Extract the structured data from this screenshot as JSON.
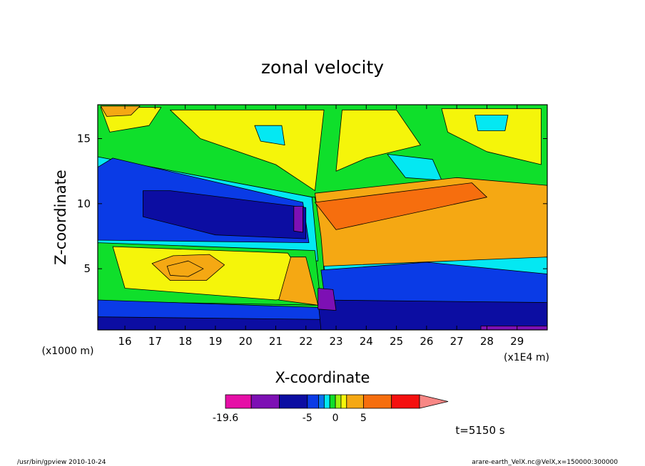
{
  "chart_data": {
    "type": "heatmap",
    "title": "zonal velocity",
    "xlabel": "X-coordinate",
    "ylabel": "Z-coordinate",
    "x_unit_label": "(x1E4 m)",
    "y_unit_label": "(x1000 m)",
    "xlim": [
      15.1,
      30.0
    ],
    "ylim": [
      0.3,
      17.6
    ],
    "x_ticks": [
      16,
      17,
      18,
      19,
      20,
      21,
      22,
      23,
      24,
      25,
      26,
      27,
      28,
      29
    ],
    "y_ticks": [
      5,
      10,
      15
    ],
    "colorbar": {
      "levels": [
        -19.6,
        -15,
        -10,
        -5,
        -3,
        -2,
        -1,
        0,
        1,
        2,
        5,
        10,
        15
      ],
      "tick_labels": [
        "-19.6",
        "-5",
        "0",
        "5"
      ],
      "colors": [
        "#e60fa7",
        "#7d10b4",
        "#0c0da2",
        "#0a3be6",
        "#0a74f0",
        "#04e8f2",
        "#0fdf2b",
        "#9ef20e",
        "#f5f50a",
        "#f5a813",
        "#f66e0e",
        "#f5100f",
        "#f88785"
      ]
    },
    "regions": [
      {
        "name": "upper-layer",
        "value": 0,
        "color": "#0fdf2b",
        "points": [
          [
            15.1,
            17.6
          ],
          [
            30,
            17.6
          ],
          [
            30,
            10.5
          ],
          [
            22.2,
            10.5
          ],
          [
            15.1,
            13.6
          ]
        ]
      },
      {
        "name": "upper-yellow-center",
        "value": 2,
        "color": "#f5f50a",
        "points": [
          [
            17.5,
            17.2
          ],
          [
            22.6,
            17.2
          ],
          [
            22.3,
            11
          ],
          [
            21,
            13
          ],
          [
            18.5,
            15
          ]
        ]
      },
      {
        "name": "upper-yellow-right",
        "value": 2,
        "color": "#f5f50a",
        "points": [
          [
            23.2,
            17.2
          ],
          [
            25,
            17.2
          ],
          [
            25.8,
            14.5
          ],
          [
            24,
            13.5
          ],
          [
            23,
            12.5
          ]
        ]
      },
      {
        "name": "upper-yellow-far-right",
        "value": 2,
        "color": "#f5f50a",
        "points": [
          [
            26.5,
            17.3
          ],
          [
            29.8,
            17.3
          ],
          [
            29.8,
            13
          ],
          [
            28,
            14
          ],
          [
            26.7,
            15.5
          ]
        ]
      },
      {
        "name": "upper-yellow-left",
        "value": 2,
        "color": "#f5f50a",
        "points": [
          [
            15.2,
            17.4
          ],
          [
            17.2,
            17.4
          ],
          [
            16.8,
            16
          ],
          [
            15.5,
            15.5
          ]
        ]
      },
      {
        "name": "top-left-orange",
        "value": 5,
        "color": "#f5a813",
        "points": [
          [
            15.2,
            17.5
          ],
          [
            16.5,
            17.5
          ],
          [
            16.2,
            16.8
          ],
          [
            15.4,
            16.7
          ]
        ]
      },
      {
        "name": "upper-cyan-patch",
        "value": -3,
        "color": "#04e8f2",
        "points": [
          [
            24.7,
            13.8
          ],
          [
            26.2,
            13.4
          ],
          [
            26.5,
            11.8
          ],
          [
            25.3,
            12
          ]
        ]
      },
      {
        "name": "upper-cyan-patch-2",
        "value": -3,
        "color": "#04e8f2",
        "points": [
          [
            27.6,
            16.8
          ],
          [
            28.7,
            16.8
          ],
          [
            28.6,
            15.6
          ],
          [
            27.7,
            15.6
          ]
        ]
      },
      {
        "name": "upper-cyan-patch-3",
        "value": -3,
        "color": "#04e8f2",
        "points": [
          [
            20.3,
            16
          ],
          [
            21.2,
            16
          ],
          [
            21.3,
            14.5
          ],
          [
            20.5,
            14.8
          ]
        ]
      },
      {
        "name": "cyan-band-left",
        "value": -3,
        "color": "#04e8f2",
        "points": [
          [
            15.1,
            13.6
          ],
          [
            22.2,
            10.5
          ],
          [
            22.4,
            5.6
          ],
          [
            15.1,
            6.2
          ]
        ]
      },
      {
        "name": "light-blue-band",
        "value": -5,
        "color": "#0a3be6",
        "points": [
          [
            15.1,
            12.8
          ],
          [
            15.6,
            13.5
          ],
          [
            21.9,
            10.1
          ],
          [
            22.1,
            7
          ],
          [
            15.1,
            7.2
          ]
        ]
      },
      {
        "name": "dark-blue-core",
        "value": -10,
        "color": "#0c0da2",
        "points": [
          [
            16.6,
            11
          ],
          [
            17.5,
            11
          ],
          [
            22,
            9.7
          ],
          [
            22,
            7.3
          ],
          [
            19,
            7.6
          ],
          [
            16.6,
            9
          ]
        ]
      },
      {
        "name": "purple-core-upper",
        "value": -15,
        "color": "#7d10b4",
        "points": [
          [
            21.6,
            9.8
          ],
          [
            21.9,
            9.8
          ],
          [
            21.9,
            7.8
          ],
          [
            21.6,
            7.9
          ]
        ]
      },
      {
        "name": "green-left-middle",
        "value": 0,
        "color": "#0fdf2b",
        "points": [
          [
            15.1,
            7
          ],
          [
            22.3,
            6.4
          ],
          [
            22.5,
            2.2
          ],
          [
            15.1,
            2.5
          ]
        ]
      },
      {
        "name": "yellow-left-middle",
        "value": 2,
        "color": "#f5f50a",
        "points": [
          [
            15.6,
            6.7
          ],
          [
            21.4,
            6.2
          ],
          [
            22.3,
            3
          ],
          [
            21,
            2.6
          ],
          [
            16,
            3.5
          ]
        ]
      },
      {
        "name": "orange-lens",
        "value": 5,
        "color": "#f5a813",
        "points": [
          [
            16.9,
            5.4
          ],
          [
            17.6,
            6
          ],
          [
            18.8,
            6.1
          ],
          [
            19.3,
            5.3
          ],
          [
            18.7,
            4.1
          ],
          [
            17.5,
            4.1
          ]
        ]
      },
      {
        "name": "orange-lens-core",
        "value": 10,
        "color": "#f5a813",
        "points": [
          [
            17.4,
            5.2
          ],
          [
            18.1,
            5.6
          ],
          [
            18.6,
            5
          ],
          [
            18.1,
            4.4
          ],
          [
            17.5,
            4.5
          ]
        ]
      },
      {
        "name": "orange-slanted",
        "value": 5,
        "color": "#f5a813",
        "points": [
          [
            21.5,
            5.9
          ],
          [
            22,
            5.9
          ],
          [
            22.4,
            2.2
          ],
          [
            21.1,
            2.6
          ]
        ]
      },
      {
        "name": "lower-left-blue",
        "value": -5,
        "color": "#0a3be6",
        "points": [
          [
            15.1,
            2.6
          ],
          [
            22.7,
            2
          ],
          [
            22.8,
            0.3
          ],
          [
            15.1,
            0.3
          ]
        ]
      },
      {
        "name": "lower-left-darkblue",
        "value": -10,
        "color": "#0c0da2",
        "points": [
          [
            15.1,
            1.3
          ],
          [
            22.7,
            1.1
          ],
          [
            22.8,
            0.3
          ],
          [
            15.1,
            0.3
          ]
        ]
      },
      {
        "name": "right-orange-layer",
        "value": 10,
        "color": "#f66e0e",
        "points": [
          [
            22.3,
            10.5
          ],
          [
            30,
            10.9
          ],
          [
            30,
            6
          ],
          [
            22.8,
            5
          ]
        ]
      },
      {
        "name": "right-orange-light",
        "value": 5,
        "color": "#f5a813",
        "points": [
          [
            22.3,
            10.8
          ],
          [
            27,
            12
          ],
          [
            30,
            11.4
          ],
          [
            30,
            5.8
          ],
          [
            22.6,
            4.8
          ],
          [
            22.5,
            7.5
          ]
        ]
      },
      {
        "name": "right-orange-core",
        "value": 15,
        "color": "#f66e0e",
        "points": [
          [
            22.3,
            10.1
          ],
          [
            27.5,
            11.6
          ],
          [
            28,
            10.5
          ],
          [
            23,
            8
          ]
        ]
      },
      {
        "name": "right-cyan-layer",
        "value": -3,
        "color": "#04e8f2",
        "points": [
          [
            22.6,
            5.2
          ],
          [
            30,
            5.9
          ],
          [
            30,
            3.4
          ],
          [
            22.7,
            3.6
          ]
        ]
      },
      {
        "name": "right-blue-layer",
        "value": -5,
        "color": "#0a3be6",
        "points": [
          [
            22.5,
            4.9
          ],
          [
            26,
            5.5
          ],
          [
            30,
            4.6
          ],
          [
            30,
            1.9
          ],
          [
            22.7,
            1.5
          ]
        ]
      },
      {
        "name": "right-darkblue-bottom",
        "value": -10,
        "color": "#0c0da2",
        "points": [
          [
            22.4,
            2.6
          ],
          [
            30,
            2.4
          ],
          [
            30,
            0.3
          ],
          [
            22.5,
            0.3
          ]
        ]
      },
      {
        "name": "purple-lower",
        "value": -15,
        "color": "#7d10b4",
        "points": [
          [
            22.4,
            3.5
          ],
          [
            22.9,
            3.4
          ],
          [
            23,
            1.8
          ],
          [
            22.4,
            1.9
          ]
        ]
      },
      {
        "name": "purple-bottom-right",
        "value": -15,
        "color": "#7d10b4",
        "points": [
          [
            27.8,
            0.6
          ],
          [
            30,
            0.6
          ],
          [
            30,
            0.3
          ],
          [
            27.8,
            0.3
          ]
        ]
      }
    ]
  },
  "annotations": {
    "time_label": "t=5150 s",
    "footer_left": "/usr/bin/gpview  2010-10-24",
    "footer_right": "arare-earth_VelX.nc@VelX,x=150000:300000"
  }
}
